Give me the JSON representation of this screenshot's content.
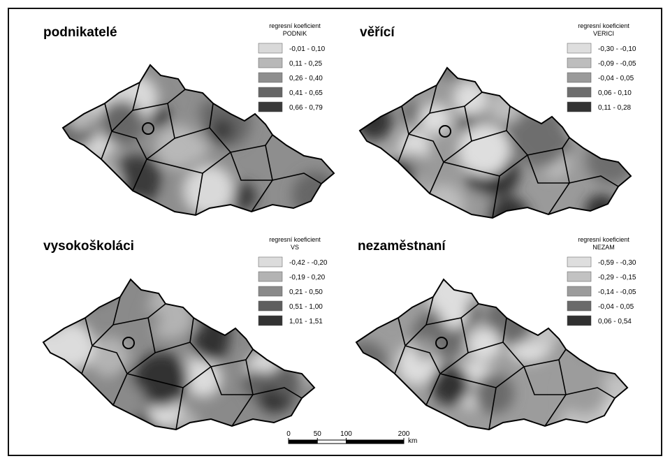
{
  "panels": [
    {
      "title": "podnikatelé",
      "legend": {
        "title": "regresní koeficient",
        "variable": "PODNIK",
        "classes": [
          "-0,01 - 0,10",
          "0,11 - 0,25",
          "0,26 - 0,40",
          "0,41 - 0,65",
          "0,66 - 0,79"
        ],
        "colors": [
          "#d9d9d9",
          "#b8b8b8",
          "#8e8e8e",
          "#666666",
          "#3a3a3a"
        ]
      }
    },
    {
      "title": "věřící",
      "legend": {
        "title": "regresní koeficient",
        "variable": "VERICI",
        "classes": [
          "-0,30 - -0,10",
          "-0,09 - -0,05",
          "-0,04 - 0,05",
          "0,06 - 0,10",
          "0,11 - 0,28"
        ],
        "colors": [
          "#dedede",
          "#bdbdbd",
          "#9a9a9a",
          "#6e6e6e",
          "#333333"
        ]
      }
    },
    {
      "title": "vysokoškoláci",
      "legend": {
        "title": "regresní koeficient",
        "variable": "VS",
        "classes": [
          "-0,42 - -0,20",
          "-0,19 - 0,20",
          "0,21 - 0,50",
          "0,51 - 1,00",
          "1,01 - 1,51"
        ],
        "colors": [
          "#dcdcdc",
          "#b3b3b3",
          "#8a8a8a",
          "#5e5e5e",
          "#333333"
        ]
      }
    },
    {
      "title": "nezaměstnaní",
      "legend": {
        "title": "regresní koeficient",
        "variable": "NEZAM",
        "classes": [
          "-0,59 - -0,30",
          "-0,29 - -0,15",
          "-0,14 - -0,05",
          "-0,04 - 0,05",
          "0,06 - 0,54"
        ],
        "colors": [
          "#dedede",
          "#c2c2c2",
          "#9c9c9c",
          "#6a6a6a",
          "#303030"
        ]
      }
    }
  ],
  "scale_bar": {
    "ticks": [
      0,
      50,
      100,
      200
    ],
    "unit": "km"
  }
}
